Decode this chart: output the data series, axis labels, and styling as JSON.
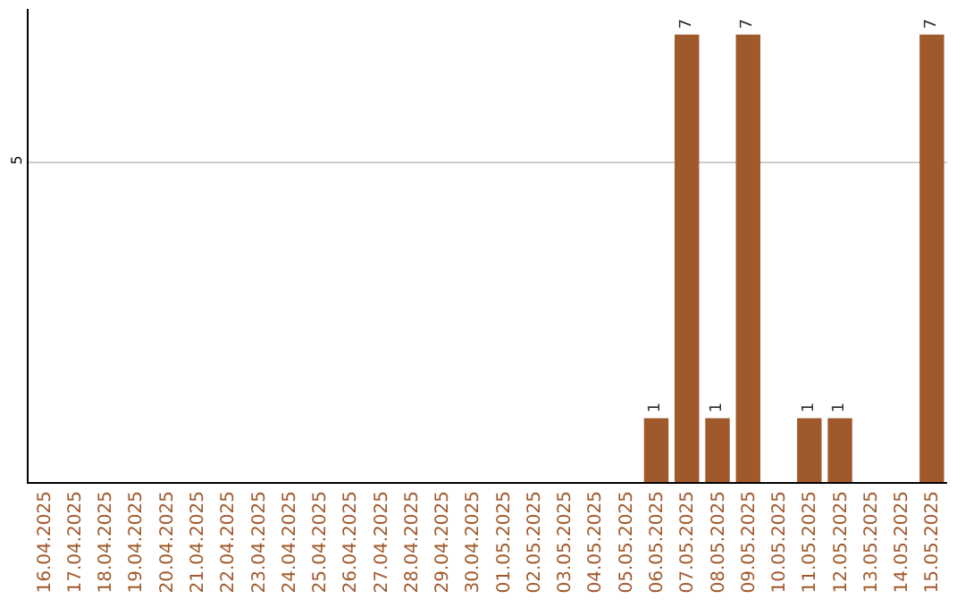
{
  "chart_data": {
    "type": "bar",
    "categories": [
      "16.04.2025",
      "17.04.2025",
      "18.04.2025",
      "19.04.2025",
      "20.04.2025",
      "21.04.2025",
      "22.04.2025",
      "23.04.2025",
      "24.04.2025",
      "25.04.2025",
      "26.04.2025",
      "27.04.2025",
      "28.04.2025",
      "29.04.2025",
      "30.04.2025",
      "01.05.2025",
      "02.05.2025",
      "03.05.2025",
      "04.05.2025",
      "05.05.2025",
      "06.05.2025",
      "07.05.2025",
      "08.05.2025",
      "09.05.2025",
      "10.05.2025",
      "11.05.2025",
      "12.05.2025",
      "13.05.2025",
      "14.05.2025",
      "15.05.2025"
    ],
    "values": [
      null,
      null,
      null,
      null,
      null,
      null,
      null,
      null,
      null,
      null,
      null,
      null,
      null,
      null,
      null,
      null,
      null,
      null,
      null,
      null,
      1,
      7,
      1,
      7,
      null,
      1,
      1,
      null,
      null,
      7
    ],
    "value_labels": [
      null,
      null,
      null,
      null,
      null,
      null,
      null,
      null,
      null,
      null,
      null,
      null,
      null,
      null,
      null,
      null,
      null,
      null,
      null,
      null,
      "1",
      "7",
      "1",
      "7",
      null,
      "1",
      "1",
      null,
      null,
      "7"
    ],
    "color": "#a0592b",
    "ylim": [
      0,
      7.4
    ],
    "yticks": [
      5
    ],
    "grid": "y",
    "legend": false
  }
}
